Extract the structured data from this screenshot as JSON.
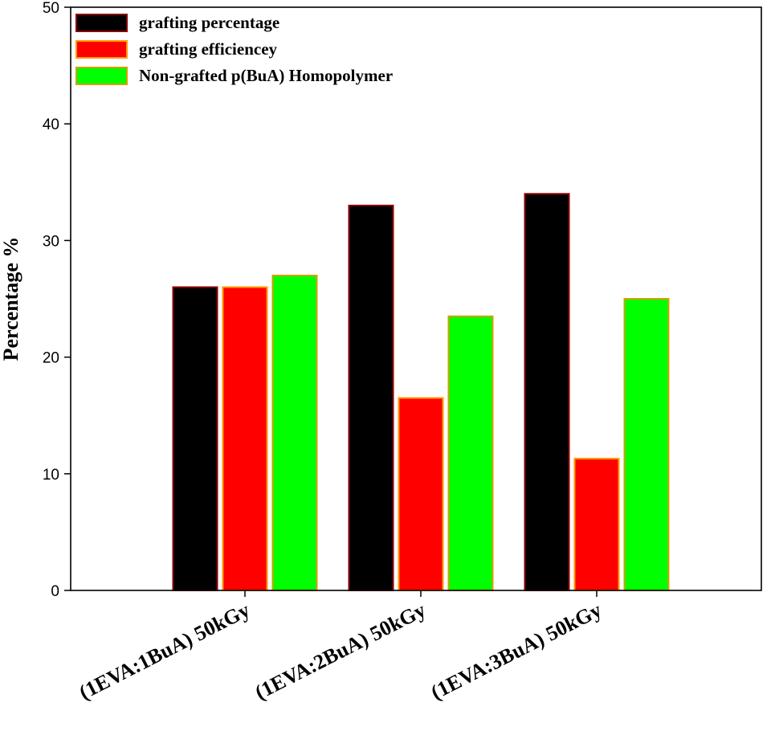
{
  "chart_data": {
    "type": "bar",
    "categories": [
      "(1EVA:1BuA) 50kGy",
      "(1EVA:2BuA) 50kGy",
      "(1EVA:3BuA) 50kGy"
    ],
    "series": [
      {
        "name": "grafting percentage",
        "values": [
          26,
          33,
          34
        ],
        "fill": "#000000",
        "stroke": "#8b0000"
      },
      {
        "name": "grafting efficiencey",
        "values": [
          26,
          16.5,
          11.3
        ],
        "fill": "#ff0000",
        "stroke": "#ff9900"
      },
      {
        "name": "Non-grafted p(BuA) Homopolymer",
        "values": [
          27,
          23.5,
          25
        ],
        "fill": "#00ff00",
        "stroke": "#d4a000"
      }
    ],
    "ylabel": "Percentage %",
    "xlabel": "",
    "title": "",
    "ylim": [
      0,
      50
    ],
    "yticks": [
      0,
      10,
      20,
      30,
      40,
      50
    ],
    "grid": false,
    "legend": "top-left"
  }
}
